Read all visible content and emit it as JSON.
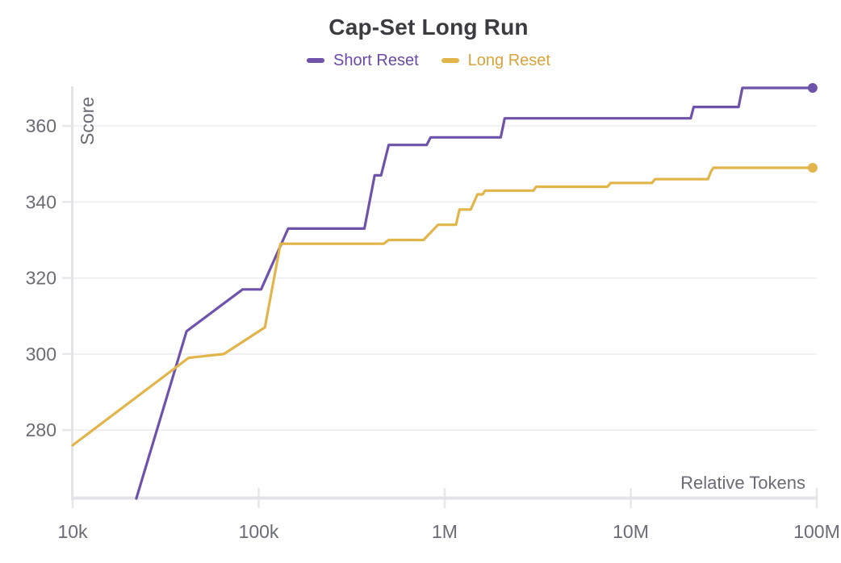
{
  "chart_data": {
    "type": "line",
    "title": "Cap-Set Long Run",
    "xlabel": "Relative Tokens",
    "ylabel": "Score",
    "x_scale": "log",
    "x_range": [
      10000,
      100000000
    ],
    "y_range": [
      262,
      370
    ],
    "x_ticks": [
      {
        "label": "10k",
        "value": 10000
      },
      {
        "label": "100k",
        "value": 100000
      },
      {
        "label": "1M",
        "value": 1000000
      },
      {
        "label": "10M",
        "value": 10000000
      },
      {
        "label": "100M",
        "value": 100000000
      }
    ],
    "y_ticks": [
      280,
      300,
      320,
      340,
      360
    ],
    "grid": "horizontal",
    "legend_position": "top-center",
    "series": [
      {
        "name": "Short Reset",
        "color": "#6F52AA",
        "label_color": "#6B4AA6",
        "end_marker": true,
        "points": [
          [
            22000,
            262
          ],
          [
            41000,
            306
          ],
          [
            82000,
            317
          ],
          [
            103000,
            317
          ],
          [
            144000,
            333
          ],
          [
            370000,
            333
          ],
          [
            420000,
            347
          ],
          [
            455000,
            347
          ],
          [
            500000,
            355
          ],
          [
            800000,
            355
          ],
          [
            840000,
            357
          ],
          [
            2000000,
            357
          ],
          [
            2100000,
            362
          ],
          [
            21000000,
            362
          ],
          [
            21800000,
            365
          ],
          [
            38000000,
            365
          ],
          [
            39800000,
            370
          ],
          [
            95000000,
            370
          ]
        ]
      },
      {
        "name": "Long Reset",
        "color": "#E2B54A",
        "label_color": "#D8A339",
        "end_marker": true,
        "points": [
          [
            10000,
            276
          ],
          [
            42000,
            299
          ],
          [
            65000,
            300
          ],
          [
            108000,
            307
          ],
          [
            131000,
            329
          ],
          [
            470000,
            329
          ],
          [
            500000,
            330
          ],
          [
            770000,
            330
          ],
          [
            920000,
            334
          ],
          [
            1150000,
            334
          ],
          [
            1200000,
            338
          ],
          [
            1380000,
            338
          ],
          [
            1500000,
            342
          ],
          [
            1600000,
            342
          ],
          [
            1650000,
            343
          ],
          [
            3000000,
            343
          ],
          [
            3100000,
            344
          ],
          [
            7500000,
            344
          ],
          [
            7800000,
            345
          ],
          [
            13000000,
            345
          ],
          [
            13500000,
            346
          ],
          [
            26000000,
            346
          ],
          [
            27000000,
            348
          ],
          [
            27800000,
            349
          ],
          [
            95000000,
            349
          ]
        ]
      }
    ],
    "palette": {
      "title_color": "#3b3b40",
      "tick_label_color": "#6b6b76",
      "axis_label_color": "#6b6b76",
      "axis_line_color": "#e4e4e8",
      "tick_mark_color": "#e7e7eb",
      "grid_color": "#ededf1",
      "background": "#ffffff"
    }
  }
}
